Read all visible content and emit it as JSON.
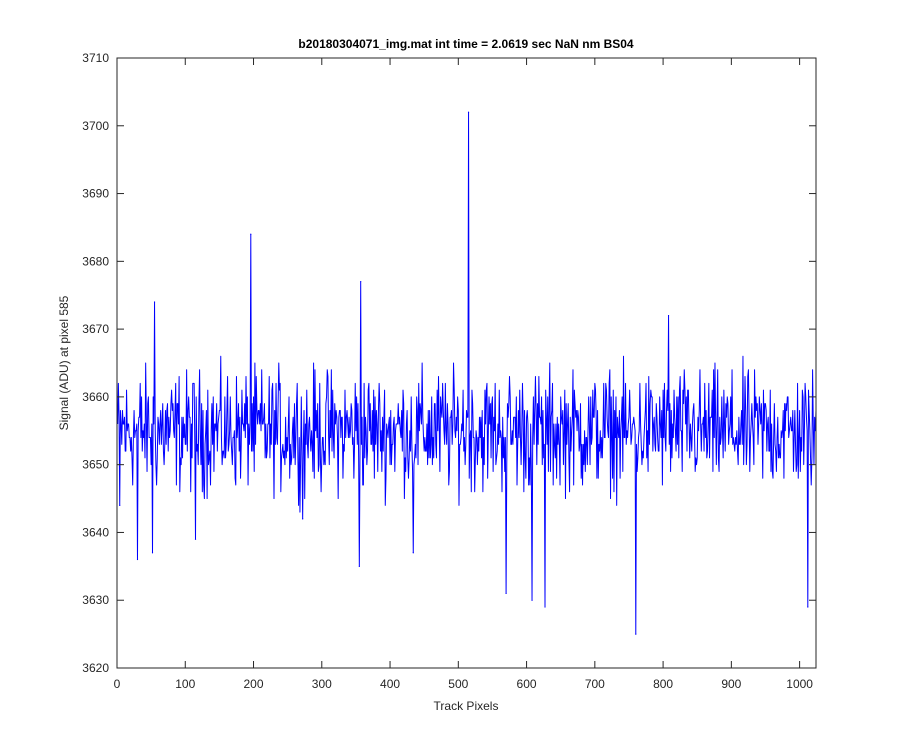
{
  "chart_data": {
    "type": "line",
    "title": "b20180304071_img.mat int time = 2.0619 sec  NaN nm BS04",
    "xlabel": "Track Pixels",
    "ylabel": "Signal (ADU) at pixel 585",
    "xlim": [
      0,
      1024
    ],
    "ylim": [
      3620,
      3710
    ],
    "xticks": [
      0,
      100,
      200,
      300,
      400,
      500,
      600,
      700,
      800,
      900,
      1000
    ],
    "yticks": [
      3620,
      3630,
      3640,
      3650,
      3660,
      3670,
      3680,
      3690,
      3700,
      3710
    ],
    "grid": false,
    "series": [
      {
        "color": "#0000ff",
        "baseline": 3655,
        "noise_amplitude": 8,
        "x_start": 1,
        "x_end": 1024,
        "notable_points": [
          {
            "x": 4,
            "y": 3644
          },
          {
            "x": 30,
            "y": 3636
          },
          {
            "x": 52,
            "y": 3637
          },
          {
            "x": 55,
            "y": 3674
          },
          {
            "x": 115,
            "y": 3639
          },
          {
            "x": 196,
            "y": 3684
          },
          {
            "x": 272,
            "y": 3642
          },
          {
            "x": 355,
            "y": 3635
          },
          {
            "x": 357,
            "y": 3677
          },
          {
            "x": 434,
            "y": 3637
          },
          {
            "x": 515,
            "y": 3702
          },
          {
            "x": 570,
            "y": 3631
          },
          {
            "x": 608,
            "y": 3630
          },
          {
            "x": 627,
            "y": 3629
          },
          {
            "x": 760,
            "y": 3625
          },
          {
            "x": 808,
            "y": 3672
          },
          {
            "x": 1012,
            "y": 3629
          }
        ]
      }
    ]
  }
}
